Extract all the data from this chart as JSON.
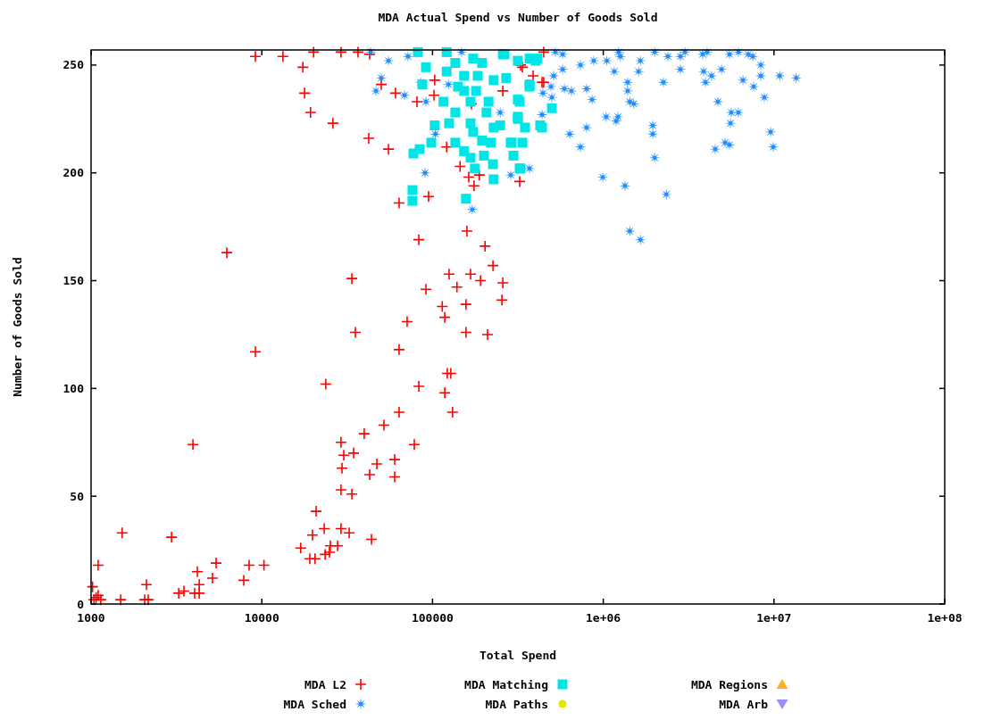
{
  "chart_data": {
    "type": "scatter",
    "title": "MDA Actual Spend vs Number of Goods Sold",
    "xlabel": "Total Spend",
    "ylabel": "Number of Goods Sold",
    "log": "x",
    "xlim": [
      1000,
      100000000
    ],
    "xticks": [
      1000,
      10000,
      100000,
      {
        "value": 1000000,
        "label": "1e+06"
      },
      {
        "value": 10000000,
        "label": "1e+07"
      },
      {
        "value": 100000000,
        "label": "1e+08"
      }
    ],
    "ylim": [
      0,
      257
    ],
    "yticks": [
      0,
      50,
      100,
      150,
      200,
      250
    ],
    "legend": "bottom",
    "series": [
      {
        "name": "MDA L2",
        "color": "#ff0000",
        "marker": "cross",
        "x": [
          1020,
          1040,
          1070,
          1100,
          1140,
          1100,
          1490,
          1520,
          2060,
          2110,
          2160,
          2960,
          3260,
          3500,
          3950,
          4040,
          4190,
          4300,
          4300,
          5140,
          5400,
          6240,
          7840,
          8430,
          9170,
          9170,
          10300,
          13300,
          16900,
          17400,
          17800,
          19100,
          19300,
          19800,
          20100,
          20500,
          20800,
          23200,
          23500,
          23700,
          24900,
          25200,
          26100,
          27800,
          29100,
          29100,
          29100,
          29500,
          30200,
          32500,
          33700,
          33700,
          34500,
          35300,
          36600,
          39800,
          42300,
          42800,
          43900,
          47200,
          50100,
          51900,
          55200,
          60000,
          60000,
          60700,
          63700,
          63700,
          63700,
          71000,
          78200,
          81100,
          83100,
          83100,
          91500,
          94800,
          102000,
          103000,
          114000,
          118000,
          118000,
          121000,
          122000,
          125000,
          128000,
          131000,
          139000,
          145000,
          157000,
          157000,
          159000,
          163000,
          167000,
          169000,
          175000,
          188000,
          191000,
          203000,
          210000,
          226000,
          255000,
          258000,
          258000,
          324000,
          328000,
          336000,
          388000,
          438000,
          448000,
          448000,
          29100,
          42800
        ],
        "values": [
          8,
          2,
          3,
          4,
          2,
          18,
          2,
          33,
          2,
          9,
          2,
          31,
          5,
          6,
          74,
          5,
          15,
          9,
          5,
          12,
          19,
          163,
          11,
          18,
          117,
          254,
          18,
          254,
          26,
          249,
          237,
          21,
          228,
          32,
          256,
          21,
          43,
          35,
          23,
          102,
          24,
          27,
          223,
          27,
          35,
          75,
          53,
          63,
          69,
          33,
          151,
          51,
          70,
          126,
          256,
          79,
          216,
          60,
          30,
          65,
          241,
          83,
          211,
          67,
          59,
          237,
          89,
          186,
          118,
          131,
          74,
          233,
          101,
          169,
          146,
          189,
          236,
          243,
          138,
          133,
          98,
          212,
          107,
          153,
          107,
          89,
          147,
          203,
          139,
          126,
          173,
          198,
          153,
          232,
          194,
          199,
          150,
          166,
          125,
          157,
          141,
          149,
          238,
          196,
          250,
          249,
          245,
          242,
          242,
          256,
          256,
          255
        ]
      },
      {
        "name": "MDA Sched",
        "color": "#1e8cff",
        "marker": "star",
        "x": [
          43400,
          46600,
          50100,
          55200,
          68500,
          71900,
          85100,
          90400,
          91500,
          104000,
          124000,
          148000,
          171000,
          249000,
          287000,
          370000,
          438000,
          443000,
          494000,
          500000,
          512000,
          524000,
          578000,
          578000,
          592000,
          636000,
          651000,
          735000,
          735000,
          799000,
          799000,
          859000,
          880000,
          993000,
          1040000,
          1050000,
          1160000,
          1190000,
          1220000,
          1230000,
          1260000,
          1340000,
          1390000,
          1390000,
          1430000,
          1430000,
          1510000,
          1610000,
          1650000,
          1650000,
          1950000,
          1950000,
          2000000,
          2000000,
          2250000,
          2340000,
          2390000,
          2830000,
          2830000,
          3010000,
          3820000,
          3870000,
          3970000,
          4060000,
          4310000,
          4530000,
          4690000,
          4930000,
          5170000,
          5490000,
          5490000,
          5560000,
          5620000,
          6190000,
          6190000,
          6580000,
          7070000,
          7510000,
          7600000,
          8370000,
          8370000,
          8780000,
          9550000,
          9900000,
          10800000,
          13500000
        ],
        "values": [
          256,
          238,
          244,
          252,
          236,
          254,
          242,
          200,
          233,
          218,
          241,
          256,
          183,
          228,
          199,
          202,
          227,
          237,
          240,
          235,
          245,
          256,
          255,
          248,
          239,
          218,
          238,
          250,
          212,
          239,
          221,
          234,
          252,
          198,
          226,
          252,
          247,
          224,
          226,
          256,
          254,
          194,
          242,
          238,
          233,
          173,
          232,
          247,
          252,
          169,
          222,
          218,
          256,
          207,
          242,
          190,
          254,
          254,
          248,
          256,
          255,
          247,
          242,
          256,
          245,
          211,
          233,
          248,
          214,
          255,
          213,
          223,
          228,
          256,
          228,
          243,
          255,
          254,
          240,
          250,
          245,
          235,
          219,
          212,
          245,
          244
        ]
      },
      {
        "name": "MDA Matching",
        "color": "#00e5e5",
        "marker": "square",
        "x": [
          82100,
          91500,
          121000,
          153000,
          195000,
          258000,
          316000,
          402000,
          87200,
          116000,
          141000,
          180000,
          228000,
          316000,
          370000,
          136000,
          167000,
          213000,
          103000,
          125000,
          167000,
          173000,
          228000,
          316000,
          348000,
          427000,
          98300,
          77300,
          84100,
          136000,
          153000,
          195000,
          220000,
          291000,
          336000,
          167000,
          177000,
          200000,
          226000,
          298000,
          324000,
          228000,
          76300,
          76300,
          157000,
          264000,
          370000,
          412000,
          270000,
          370000,
          324000,
          500000,
          316000,
          438000,
          287000,
          328000,
          136000,
          173000,
          153000,
          207000,
          184000,
          121000,
          249000
        ],
        "values": [
          256,
          249,
          256,
          245,
          251,
          255,
          252,
          252,
          241,
          233,
          240,
          238,
          243,
          234,
          241,
          228,
          233,
          233,
          222,
          223,
          223,
          219,
          221,
          225,
          221,
          222,
          214,
          209,
          211,
          214,
          210,
          215,
          214,
          214,
          214,
          207,
          202,
          208,
          204,
          208,
          202,
          197,
          192,
          187,
          188,
          255,
          253,
          253,
          244,
          240,
          233,
          230,
          226,
          221,
          214,
          202,
          251,
          253,
          238,
          228,
          245,
          247,
          222
        ]
      },
      {
        "name": "MDA Paths",
        "color": "#e5e500",
        "marker": "circle"
      },
      {
        "name": "MDA Regions",
        "color": "#ffb020",
        "marker": "triangle"
      },
      {
        "name": "MDA Arb",
        "color": "#a08cf5",
        "marker": "triangle-down"
      }
    ]
  }
}
